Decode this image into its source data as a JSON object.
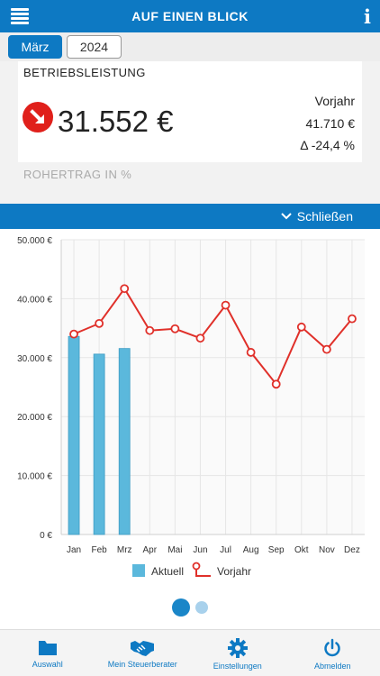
{
  "header": {
    "title": "AUF EINEN BLICK",
    "menu_icon": "hamburger-menu-icon",
    "info_icon": "info-icon"
  },
  "period": {
    "month": "März",
    "year": "2024"
  },
  "kpi": {
    "label": "BETRIEBSLEISTUNG",
    "value": "31.552 €",
    "trend_icon": "arrow-down-right-icon",
    "trend_color": "#e0201b",
    "prev_label": "Vorjahr",
    "prev_value": "41.710 €",
    "delta": "Δ -24,4 %"
  },
  "next_kpi_label": "ROHERTRAG IN %",
  "collapse": {
    "label": "Schließen",
    "icon": "chevron-down-icon"
  },
  "chart_data": {
    "type": "bar",
    "categories": [
      "Jan",
      "Feb",
      "Mrz",
      "Apr",
      "Mai",
      "Jun",
      "Jul",
      "Aug",
      "Sep",
      "Okt",
      "Nov",
      "Dez"
    ],
    "series": [
      {
        "name": "Aktuell",
        "type": "bar",
        "color": "#5bb8dc",
        "values": [
          33600,
          30600,
          31552,
          null,
          null,
          null,
          null,
          null,
          null,
          null,
          null,
          null
        ]
      },
      {
        "name": "Vorjahr",
        "type": "line",
        "color": "#e0302a",
        "values": [
          34000,
          35800,
          41710,
          34600,
          34900,
          33300,
          38900,
          30900,
          25500,
          35200,
          31400,
          36600
        ]
      }
    ],
    "y_ticks": [
      "0 €",
      "10.000 €",
      "20.000 €",
      "30.000 €",
      "40.000 €",
      "50.000 €"
    ],
    "ylim": [
      0,
      50000
    ],
    "grid": true,
    "legend_position": "bottom"
  },
  "pager": {
    "pages": 2,
    "active": 1
  },
  "bottom_nav": [
    {
      "label": "Auswahl",
      "icon": "folder-icon"
    },
    {
      "label": "Mein Steuerberater",
      "icon": "handshake-icon"
    },
    {
      "label": "Einstellungen",
      "icon": "gear-icon"
    },
    {
      "label": "Abmelden",
      "icon": "power-icon"
    }
  ],
  "colors": {
    "primary": "#0d79c3",
    "background": "#f2f2f2"
  }
}
